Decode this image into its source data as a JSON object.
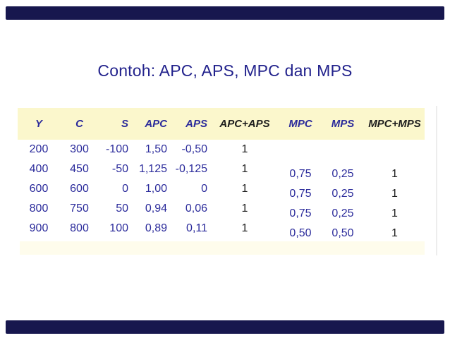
{
  "slide": {
    "title": "Contoh: APC, APS, MPC dan MPS"
  },
  "table": {
    "headers": [
      "Y",
      "C",
      "S",
      "APC",
      "APS",
      "APC+APS",
      "MPC",
      "MPS",
      "MPC+MPS"
    ],
    "rows": [
      [
        "200",
        "300",
        "-100",
        "1,50",
        "-0,50",
        "1",
        "",
        "",
        ""
      ],
      [
        "400",
        "450",
        "-50",
        "1,125",
        "-0,125",
        "1",
        "0,75",
        "0,25",
        "1"
      ],
      [
        "600",
        "600",
        "0",
        "1,00",
        "0",
        "1",
        "0,75",
        "0,25",
        "1"
      ],
      [
        "800",
        "750",
        "50",
        "0,94",
        "0,06",
        "1",
        "0,75",
        "0,25",
        "1"
      ],
      [
        "900",
        "800",
        "100",
        "0,89",
        "0,11",
        "1",
        "0,50",
        "0,50",
        "1"
      ]
    ]
  },
  "colors": {
    "decoration_bar": "#17174E",
    "title_text": "#22228C",
    "navy_text": "#2B2B9B",
    "black_text": "#1D1D1D",
    "header_band_bg": "#FBF7CC",
    "footer_strip_bg": "#FEFCEC",
    "background": "#FFFFFF"
  }
}
